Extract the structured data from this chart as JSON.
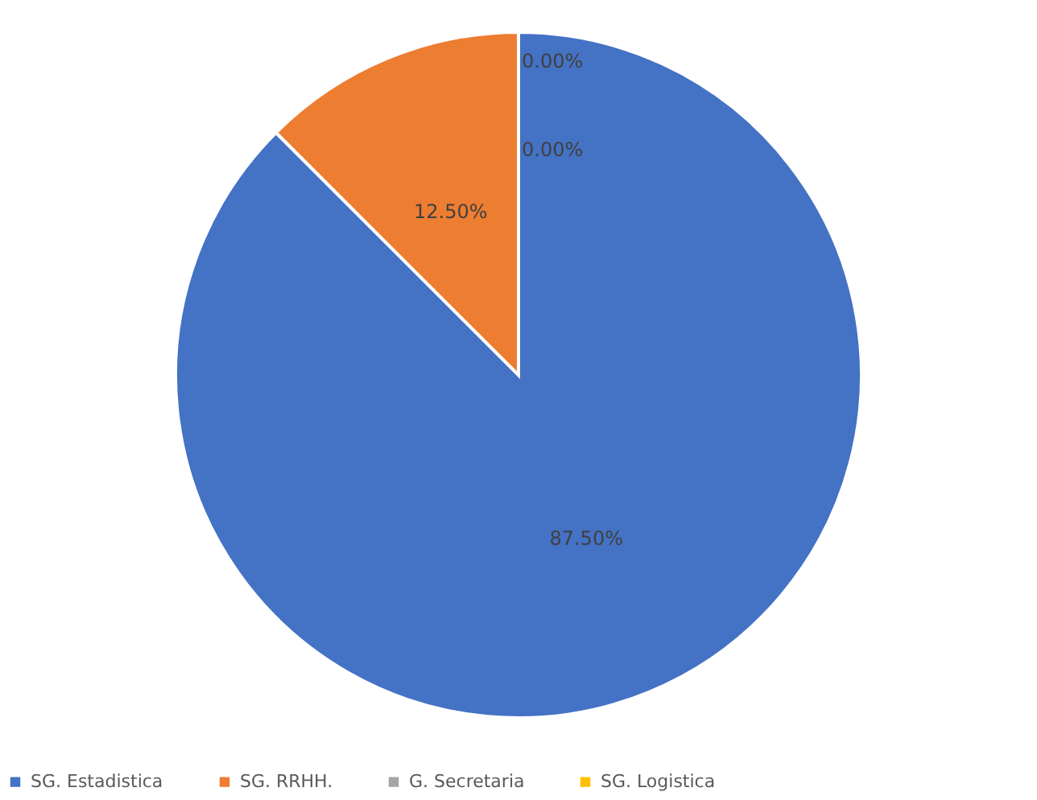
{
  "chart_data": {
    "type": "pie",
    "categories": [
      "SG. Estadistica",
      "SG. RRHH.",
      "G. Secretaria",
      "SG. Logistica"
    ],
    "values": [
      87.5,
      12.5,
      0,
      0
    ],
    "colors": [
      "#4472c4",
      "#ed7d31",
      "#a5a5a5",
      "#ffc000"
    ],
    "value_labels": [
      "87.50%",
      "12.50%",
      "0.00%",
      "0.00%"
    ],
    "legend": "bottom"
  }
}
